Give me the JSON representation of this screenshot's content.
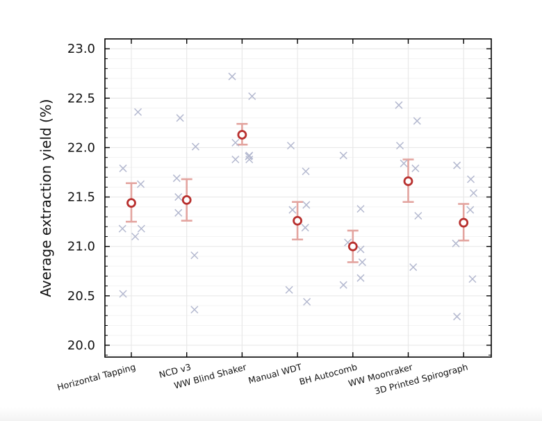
{
  "chart_data": {
    "type": "scatter",
    "title": "",
    "xlabel": "",
    "ylabel": "Average extraction yield (%)",
    "ylim": [
      19.88,
      23.1
    ],
    "yticks": [
      20.0,
      20.5,
      21.0,
      21.5,
      22.0,
      22.5,
      23.0
    ],
    "ytick_labels": [
      "20.0",
      "20.5",
      "21.0",
      "21.5",
      "22.0",
      "22.5",
      "23.0"
    ],
    "grid": true,
    "legend": "none",
    "categories": [
      "Horizontal Tapping",
      "NCD v3",
      "WW Blind Shaker",
      "Manual WDT",
      "BH Autocomb",
      "WW Moonraker",
      "3D Printed Spirograph"
    ],
    "mean": [
      21.44,
      21.47,
      22.13,
      21.26,
      21.0,
      21.66,
      21.24
    ],
    "error_low": [
      21.25,
      21.26,
      22.03,
      21.07,
      20.84,
      21.45,
      21.06
    ],
    "error_high": [
      21.64,
      21.68,
      22.24,
      21.45,
      21.16,
      21.88,
      21.43
    ],
    "individual_points": [
      {
        "category": "Horizontal Tapping",
        "offsets": [
          -0.15,
          -0.16,
          0.12,
          0.17,
          0.07,
          0.18,
          -0.15
        ],
        "values": [
          21.79,
          21.18,
          22.36,
          21.63,
          21.1,
          21.18,
          20.52
        ]
      },
      {
        "category": "NCD v3",
        "offsets": [
          -0.18,
          -0.15,
          -0.12,
          0.16,
          0.14,
          0.14,
          -0.15
        ],
        "values": [
          21.69,
          21.5,
          22.3,
          22.01,
          20.91,
          20.36,
          21.34
        ]
      },
      {
        "category": "WW Blind Shaker",
        "offsets": [
          -0.18,
          -0.12,
          0.18,
          0.13,
          0.13,
          0.12,
          -0.12
        ],
        "values": [
          22.72,
          22.05,
          22.52,
          21.92,
          21.88,
          21.91,
          21.88
        ]
      },
      {
        "category": "Manual WDT",
        "offsets": [
          -0.12,
          -0.09,
          0.15,
          0.16,
          0.14,
          0.17,
          -0.15
        ],
        "values": [
          22.02,
          21.37,
          21.76,
          21.42,
          21.19,
          20.44,
          20.56
        ]
      },
      {
        "category": "BH Autocomb",
        "offsets": [
          -0.17,
          -0.17,
          0.14,
          0.14,
          0.17,
          0.14,
          -0.09
        ],
        "values": [
          21.92,
          20.61,
          21.38,
          20.97,
          20.84,
          20.68,
          21.04
        ]
      },
      {
        "category": "WW Moonraker",
        "offsets": [
          -0.17,
          -0.15,
          0.13,
          0.16,
          0.18,
          0.09,
          -0.08
        ],
        "values": [
          22.43,
          22.02,
          21.79,
          22.27,
          21.31,
          20.79,
          21.84
        ]
      },
      {
        "category": "3D Printed Spirograph",
        "offsets": [
          -0.12,
          -0.14,
          0.18,
          0.13,
          0.12,
          0.16,
          -0.12
        ],
        "values": [
          21.82,
          21.03,
          21.54,
          21.68,
          21.37,
          20.67,
          20.29
        ]
      }
    ],
    "colors": {
      "mean_marker": "#b8302e",
      "error_bar": "#e3a49f",
      "individual_marker": "#b3b8cf",
      "grid": "#e8e8e8",
      "axes": "#000000"
    }
  }
}
